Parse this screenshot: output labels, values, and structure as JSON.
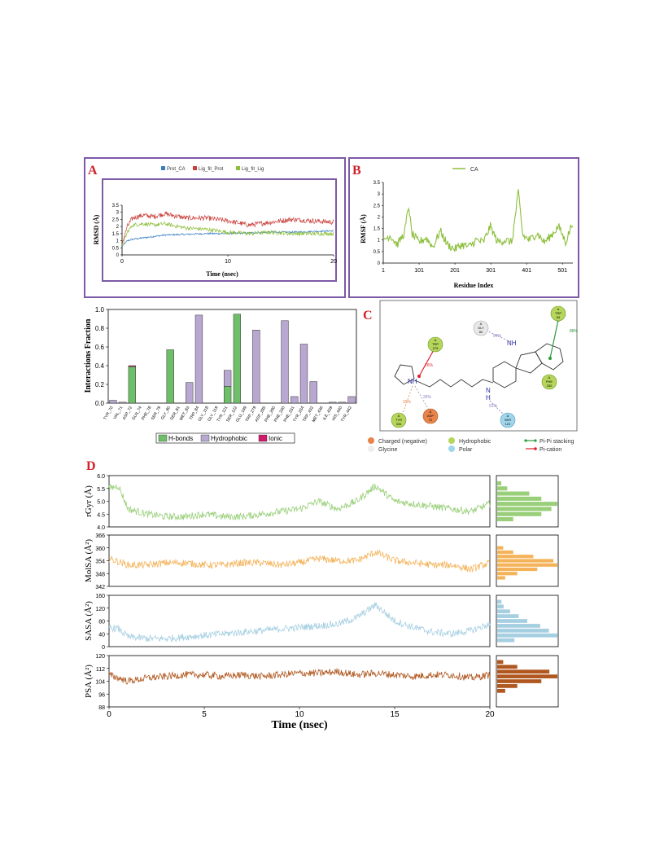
{
  "panelA": {
    "letter": "A",
    "legend": [
      "Prot_CA",
      "Lig_fit_Prot",
      "Lig_fit_Lig"
    ],
    "ylabel": "RMSD (Å)",
    "xlabel": "Time (nsec)",
    "yticks": [
      "0",
      "0.5",
      "1",
      "1.5",
      "2",
      "2.5",
      "3",
      "3.5"
    ],
    "xticks": [
      "0",
      "10",
      "20"
    ]
  },
  "panelB": {
    "letter": "B",
    "legend": "CA",
    "ylabel": "RMSF (Å)",
    "xlabel": "Residue Index",
    "yticks": [
      "0",
      "0.5",
      "1",
      "1.5",
      "2",
      "2.5",
      "3",
      "3.5"
    ],
    "xticks": [
      "1",
      "101",
      "201",
      "301",
      "401",
      "501"
    ]
  },
  "panelC": {
    "letter": "C",
    "legend": [
      {
        "label": "Charged (negative)",
        "color": "#e8834a"
      },
      {
        "label": "Hydrophobic",
        "color": "#b5d65a"
      },
      {
        "label": "Pi-Pi stacking",
        "color": "#2a9a3a"
      },
      {
        "label": "Glycine",
        "color": "#e8e8e8"
      },
      {
        "label": "Polar",
        "color": "#9fd6ec"
      },
      {
        "label": "Pi-cation",
        "color": "#e0202a"
      }
    ],
    "residues": [
      {
        "chain": "A",
        "name": "TRP",
        "num": "84"
      },
      {
        "chain": "A",
        "name": "GLY",
        "num": "80"
      },
      {
        "chain": "A",
        "name": "TRP",
        "num": "279"
      },
      {
        "chain": "A",
        "name": "PHE",
        "num": "330"
      },
      {
        "chain": "A",
        "name": "TYR",
        "num": "334"
      },
      {
        "chain": "A",
        "name": "ASP",
        "num": "72"
      },
      {
        "chain": "A",
        "name": "SER",
        "num": "122"
      }
    ],
    "percents": [
      "88%",
      "54%",
      "76%",
      "26%",
      "20%",
      "91%"
    ],
    "atoms": {
      "nh": "NH",
      "nh_plus": "+",
      "n": "N",
      "h": "H"
    }
  },
  "panelD": {
    "letter": "D",
    "xlabel": "Time (nsec)",
    "xticks": [
      "0",
      "5",
      "10",
      "15",
      "20"
    ],
    "rows": [
      {
        "ylabel": "rGyr (Å)",
        "yticks": [
          "4.0",
          "4.5",
          "5.0",
          "5.5",
          "6.0"
        ],
        "color": "#98cf78"
      },
      {
        "ylabel": "MolSA (Å²)",
        "yticks": [
          "342",
          "348",
          "354",
          "360",
          "366"
        ],
        "color": "#f4b35a"
      },
      {
        "ylabel": "SASA (Å²)",
        "yticks": [
          "0",
          "40",
          "80",
          "120",
          "160"
        ],
        "color": "#a6cfe2"
      },
      {
        "ylabel": "PSA (Å²)",
        "yticks": [
          "88",
          "96",
          "104",
          "112",
          "120"
        ],
        "color": "#b0571f"
      }
    ]
  },
  "chart_data": [
    {
      "type": "line",
      "title": "",
      "xlabel": "Time (nsec)",
      "ylabel": "RMSD (Å)",
      "xlim": [
        0,
        20
      ],
      "ylim": [
        0,
        3.5
      ],
      "series": [
        {
          "name": "Prot_CA",
          "color": "#3a7cc4",
          "x": [
            0,
            0.5,
            1,
            2,
            3,
            4,
            6,
            8,
            10,
            12,
            14,
            16,
            18,
            20
          ],
          "values": [
            0.6,
            1.0,
            1.1,
            1.2,
            1.3,
            1.4,
            1.45,
            1.5,
            1.5,
            1.55,
            1.6,
            1.6,
            1.65,
            1.7
          ]
        },
        {
          "name": "Lig_fit_Prot",
          "color": "#c9403a",
          "x": [
            0,
            0.5,
            1,
            2,
            3,
            4,
            6,
            8,
            10,
            12,
            14,
            16,
            18,
            20
          ],
          "values": [
            0.8,
            2.0,
            2.6,
            2.8,
            2.7,
            2.9,
            2.6,
            2.6,
            2.4,
            2.1,
            2.3,
            2.5,
            2.4,
            2.3
          ]
        },
        {
          "name": "Lig_fit_Lig",
          "color": "#8dbf3c",
          "x": [
            0,
            0.5,
            1,
            2,
            3,
            4,
            6,
            8,
            10,
            12,
            14,
            16,
            18,
            20
          ],
          "values": [
            0.6,
            1.6,
            2.1,
            2.2,
            2.1,
            2.2,
            1.9,
            1.8,
            1.6,
            1.5,
            1.6,
            1.5,
            1.5,
            1.5
          ]
        }
      ]
    },
    {
      "type": "line",
      "title": "",
      "xlabel": "Residue Index",
      "ylabel": "RMSF (Å)",
      "xlim": [
        1,
        530
      ],
      "ylim": [
        0,
        3.5
      ],
      "series": [
        {
          "name": "CA",
          "color": "#8dbf3c",
          "x": [
            1,
            20,
            40,
            60,
            72,
            80,
            100,
            120,
            140,
            160,
            180,
            200,
            220,
            240,
            260,
            280,
            300,
            320,
            340,
            360,
            378,
            390,
            410,
            430,
            450,
            470,
            490,
            510,
            530
          ],
          "values": [
            1.0,
            1.2,
            0.8,
            1.3,
            2.5,
            1.3,
            0.9,
            1.1,
            0.7,
            1.4,
            0.8,
            0.6,
            0.8,
            0.7,
            1.0,
            0.9,
            1.6,
            0.9,
            1.0,
            0.9,
            3.1,
            1.2,
            1.0,
            1.3,
            0.9,
            1.2,
            1.6,
            0.9,
            1.8
          ]
        }
      ]
    },
    {
      "type": "bar",
      "title": "",
      "xlabel": "",
      "ylabel": "Interactions Fraction",
      "ylim": [
        0,
        1.0
      ],
      "categories": [
        "TYR_70",
        "VAL_71",
        "ASP_72",
        "GLN_74",
        "PHE_78",
        "SER_79",
        "GLY_80",
        "SER_81",
        "MET_83",
        "TRP_84",
        "GLY_118",
        "GLY_119",
        "TYR_121",
        "SER_122",
        "GLU_199",
        "TRP_279",
        "ASP_285",
        "PHE_290",
        "PHE_330",
        "PHE_331",
        "TYR_334",
        "TRP_432",
        "MET_436",
        "ILE_439",
        "HIS_440",
        "TYR_442"
      ],
      "series": [
        {
          "name": "H-bonds",
          "color": "#6fbf6a",
          "values": [
            0,
            0,
            0.39,
            0,
            0,
            0,
            0.57,
            0,
            0,
            0,
            0,
            0,
            0.18,
            0.95,
            0,
            0,
            0,
            0,
            0,
            0,
            0,
            0,
            0,
            0,
            0,
            0
          ]
        },
        {
          "name": "Hydrophobic",
          "color": "#b8a7d0",
          "values": [
            0.03,
            0.01,
            0,
            0,
            0,
            0,
            0,
            0,
            0.22,
            0.94,
            0,
            0,
            0.17,
            0,
            0,
            0.78,
            0,
            0,
            0.88,
            0.07,
            0.63,
            0.23,
            0,
            0.01,
            0.01,
            0.07
          ]
        },
        {
          "name": "Ionic",
          "color": "#d1186a",
          "values": [
            0,
            0,
            0.01,
            0,
            0,
            0,
            0,
            0,
            0,
            0,
            0,
            0,
            0,
            0,
            0,
            0,
            0,
            0,
            0,
            0,
            0,
            0,
            0,
            0,
            0,
            0
          ]
        }
      ]
    },
    {
      "type": "line",
      "title": "",
      "xlabel": "Time (nsec)",
      "ylabel": "rGyr (Å)",
      "xlim": [
        0,
        20
      ],
      "ylim": [
        4.0,
        6.0
      ],
      "series": [
        {
          "name": "",
          "color": "#98cf78",
          "x": [
            0,
            0.5,
            1,
            2,
            3,
            4,
            5,
            6,
            7,
            8,
            9,
            10,
            11,
            12,
            13,
            14,
            15,
            16,
            17,
            18,
            19,
            20
          ],
          "values": [
            5.5,
            5.6,
            4.7,
            4.5,
            4.4,
            4.4,
            4.5,
            4.4,
            4.4,
            4.5,
            4.6,
            4.7,
            5.0,
            4.7,
            5.0,
            5.6,
            5.0,
            4.9,
            4.8,
            4.7,
            4.6,
            4.9
          ]
        }
      ],
      "histogram": {
        "bins": [
          4.3,
          4.5,
          4.7,
          4.9,
          5.1,
          5.3,
          5.5,
          5.7
        ],
        "counts": [
          8,
          22,
          27,
          30,
          22,
          16,
          5,
          2
        ]
      }
    },
    {
      "type": "line",
      "title": "",
      "xlabel": "Time (nsec)",
      "ylabel": "MolSA (Å²)",
      "xlim": [
        0,
        20
      ],
      "ylim": [
        342,
        366
      ],
      "series": [
        {
          "name": "",
          "color": "#f4b35a",
          "x": [
            0,
            1,
            2,
            3,
            4,
            5,
            6,
            7,
            8,
            9,
            10,
            11,
            12,
            13,
            14,
            15,
            16,
            17,
            18,
            19,
            20
          ],
          "values": [
            355,
            352,
            352,
            353,
            353,
            352,
            352,
            353,
            353,
            352,
            353,
            355,
            354,
            354,
            358,
            354,
            353,
            352,
            352,
            350,
            353
          ]
        }
      ],
      "histogram": {
        "bins": [
          346,
          348,
          350,
          352,
          354,
          356,
          358,
          360
        ],
        "counts": [
          4,
          10,
          20,
          30,
          28,
          18,
          8,
          3
        ]
      }
    },
    {
      "type": "line",
      "title": "",
      "xlabel": "Time (nsec)",
      "ylabel": "SASA (Å²)",
      "xlim": [
        0,
        20
      ],
      "ylim": [
        0,
        160
      ],
      "series": [
        {
          "name": "",
          "color": "#a6cfe2",
          "x": [
            0,
            0.5,
            1,
            2,
            3,
            4,
            5,
            6,
            7,
            8,
            9,
            10,
            11,
            12,
            13,
            14,
            15,
            16,
            17,
            18,
            19,
            20
          ],
          "values": [
            60,
            55,
            30,
            25,
            25,
            30,
            35,
            40,
            45,
            50,
            55,
            60,
            65,
            70,
            90,
            130,
            80,
            60,
            45,
            40,
            50,
            70
          ]
        }
      ],
      "histogram": {
        "bins": [
          20,
          35,
          50,
          65,
          80,
          95,
          110,
          125,
          140
        ],
        "counts": [
          8,
          28,
          24,
          20,
          14,
          10,
          6,
          3,
          2
        ]
      }
    },
    {
      "type": "line",
      "title": "",
      "xlabel": "Time (nsec)",
      "ylabel": "PSA (Å²)",
      "xlim": [
        0,
        20
      ],
      "ylim": [
        88,
        120
      ],
      "series": [
        {
          "name": "",
          "color": "#b0571f",
          "x": [
            0,
            1,
            2,
            3,
            4,
            5,
            6,
            7,
            8,
            9,
            10,
            11,
            12,
            13,
            14,
            15,
            16,
            17,
            18,
            19,
            20
          ],
          "values": [
            108,
            104,
            106,
            107,
            108,
            108,
            107,
            108,
            107,
            108,
            109,
            109,
            110,
            108,
            109,
            108,
            107,
            108,
            108,
            106,
            108
          ]
        }
      ],
      "histogram": {
        "bins": [
          98,
          101,
          104,
          107,
          110,
          113,
          116
        ],
        "counts": [
          4,
          10,
          22,
          30,
          26,
          10,
          3
        ]
      }
    }
  ]
}
